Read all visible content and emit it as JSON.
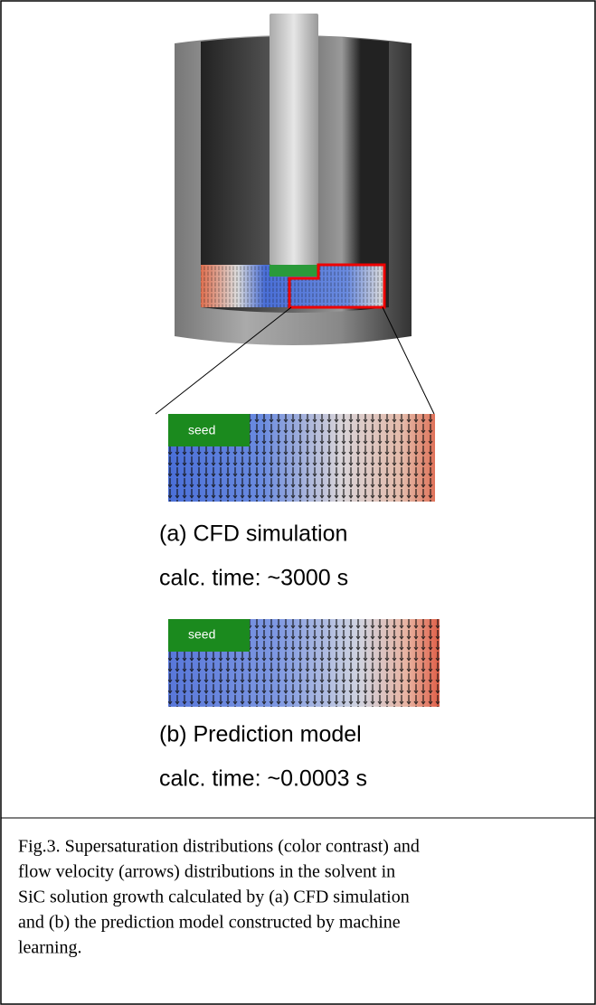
{
  "figure": {
    "panel_a": {
      "seed_label": "seed",
      "title": "(a) CFD simulation",
      "time": "calc. time: ~3000 s"
    },
    "panel_b": {
      "seed_label": "seed",
      "title": "(b) Prediction model",
      "time": "calc. time: ~0.0003 s"
    },
    "caption": {
      "lines": [
        "Fig.3. Supersaturation distributions (color contrast) and",
        "flow velocity (arrows) distributions in the solvent in",
        "SiC solution growth calculated by (a) CFD simulation",
        "and (b) the prediction model constructed by machine",
        "learning."
      ]
    }
  }
}
